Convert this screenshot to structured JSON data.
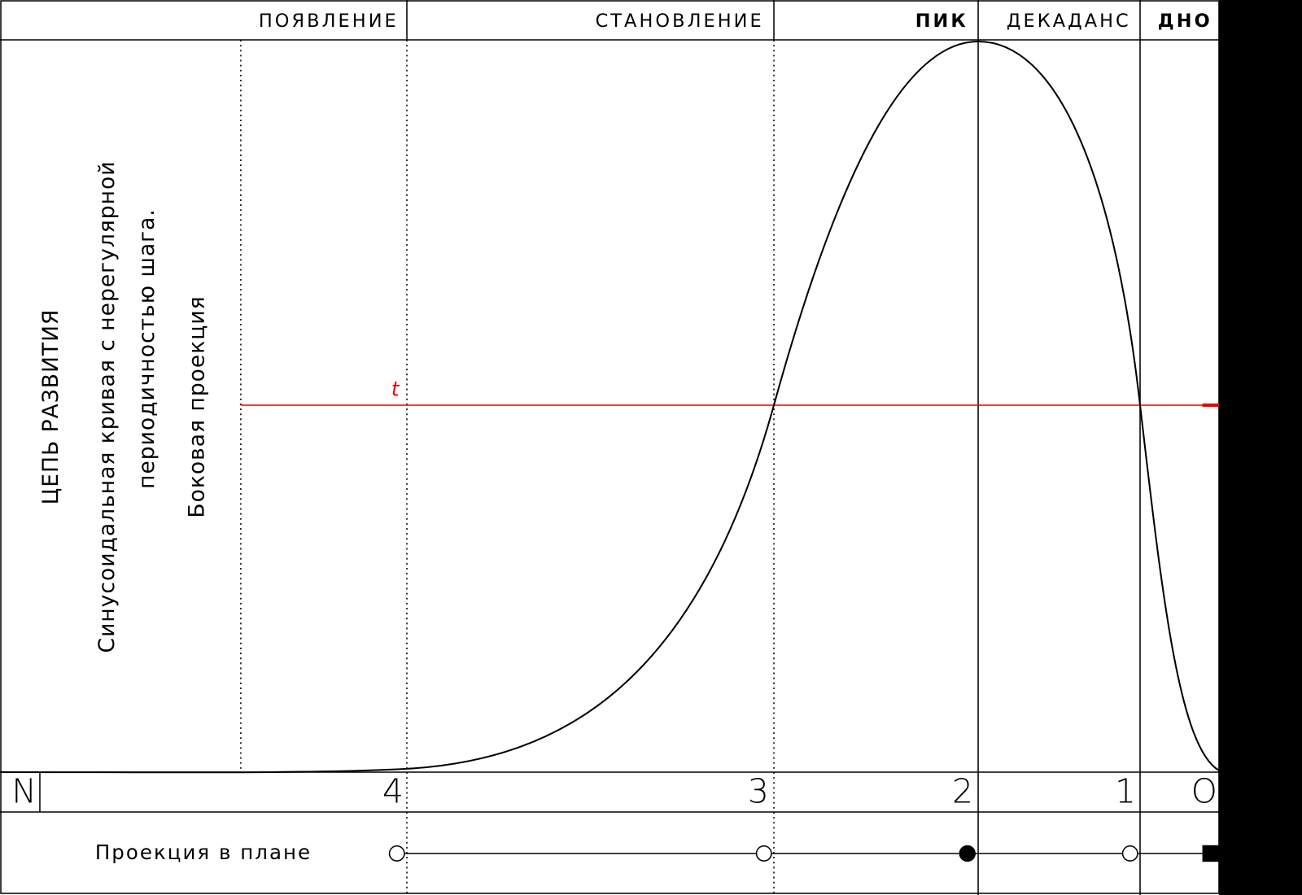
{
  "header": {
    "stages": [
      "ПОЯВЛЕНИЕ",
      "СТАНОВЛЕНИЕ",
      "ПИК",
      "ДЕКАДАНС",
      "ДНО"
    ]
  },
  "side_labels": {
    "title": "ЦЕПЬ РАЗВИТИЯ",
    "description_line1": "Синусоидальная кривая с нерегулярной",
    "description_line2": "периодичностью шага.",
    "view": "Боковая проекция"
  },
  "curve": {
    "threshold_label": "t"
  },
  "scale": {
    "start": "N",
    "points": [
      "4",
      "3",
      "2",
      "1",
      "O"
    ]
  },
  "plan": {
    "label": "Проекция в плане"
  }
}
